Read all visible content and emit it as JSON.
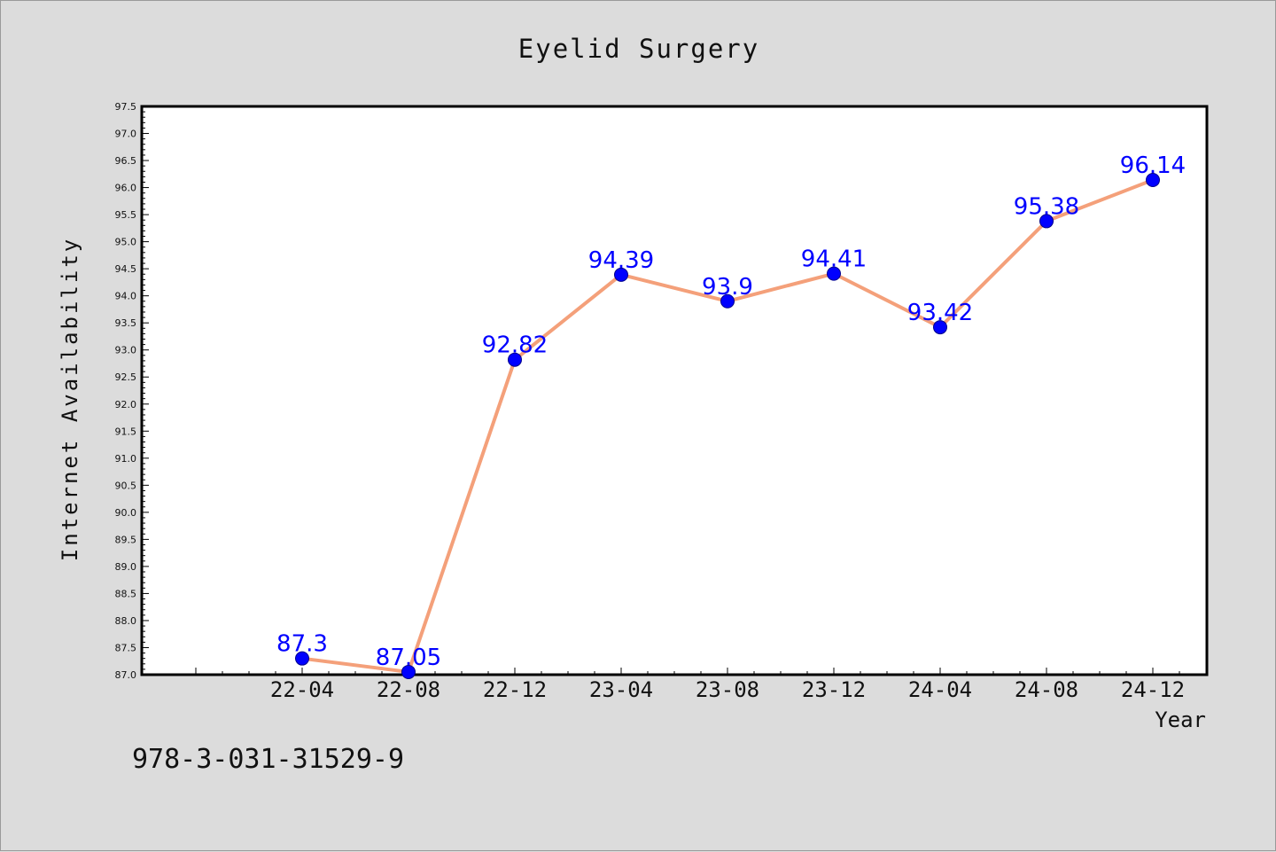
{
  "chart_data": {
    "type": "line",
    "title": "Eyelid Surgery",
    "xlabel": "Year",
    "ylabel": "Internet Availability",
    "categories": [
      "22-04",
      "22-08",
      "22-12",
      "23-04",
      "23-08",
      "23-12",
      "24-04",
      "24-08",
      "24-12"
    ],
    "series": [
      {
        "values": [
          87.3,
          87.05,
          92.82,
          94.39,
          93.9,
          94.41,
          93.42,
          95.38,
          96.14
        ],
        "labels": [
          "87.3",
          "87.05",
          "92.82",
          "94.39",
          "93.9",
          "94.41",
          "93.42",
          "95.38",
          "96.14"
        ]
      }
    ],
    "ylim": [
      87.0,
      97.5
    ],
    "ytick_step": 0.5,
    "grid": false,
    "colors": {
      "line": "#f4a07a",
      "marker": "#0000ff",
      "marker_edge": "#00008b",
      "data_label": "#0000ff",
      "plot_background": "#ffffff",
      "page_background": "#dcdcdc"
    }
  },
  "footer": {
    "isbn": "978-3-031-31529-9"
  }
}
